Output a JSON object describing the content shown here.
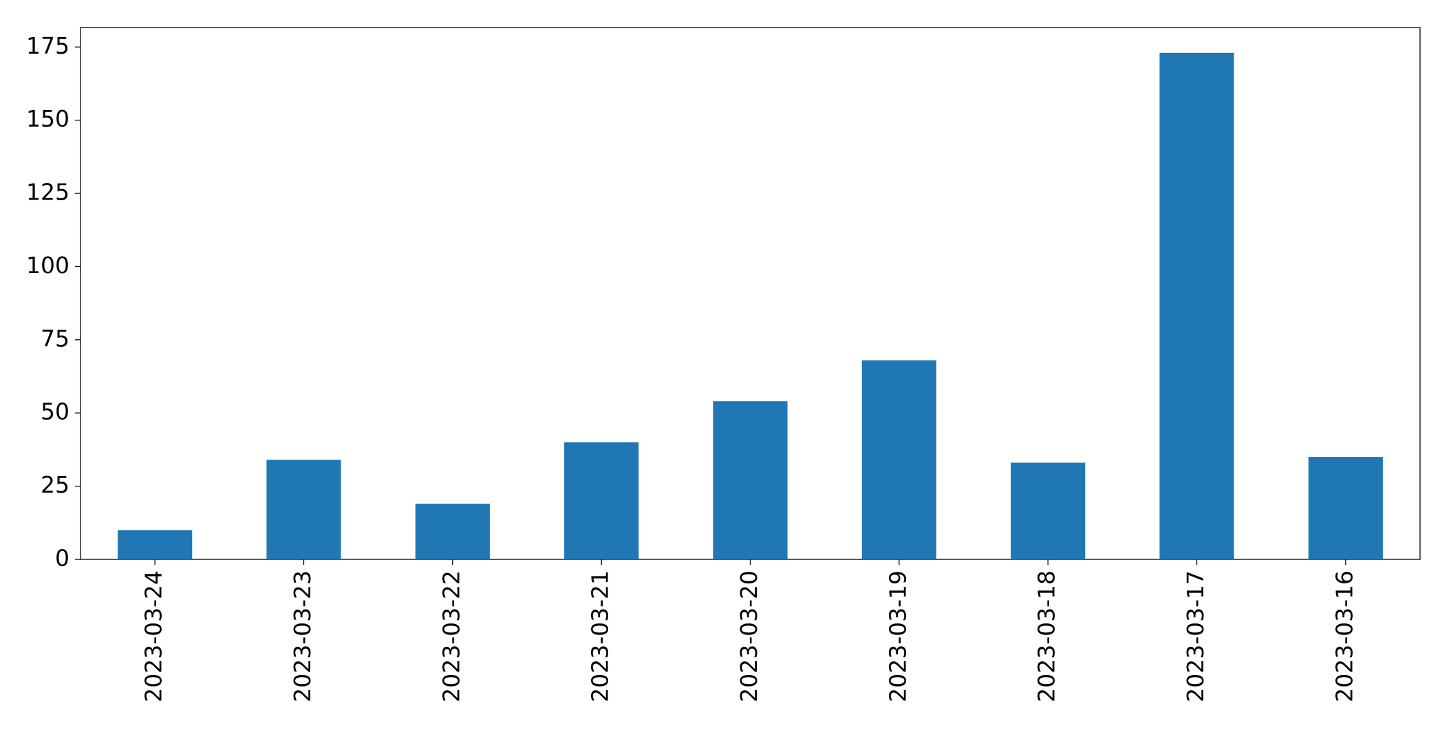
{
  "chart_data": {
    "type": "bar",
    "categories": [
      "2023-03-24",
      "2023-03-23",
      "2023-03-22",
      "2023-03-21",
      "2023-03-20",
      "2023-03-19",
      "2023-03-18",
      "2023-03-17",
      "2023-03-16"
    ],
    "values": [
      10,
      34,
      19,
      40,
      54,
      68,
      33,
      173,
      35
    ],
    "color": "#1f77b4",
    "ylim": [
      0,
      181.65
    ],
    "yticks": [
      0,
      25,
      50,
      75,
      100,
      125,
      150,
      175
    ],
    "grid": false
  }
}
